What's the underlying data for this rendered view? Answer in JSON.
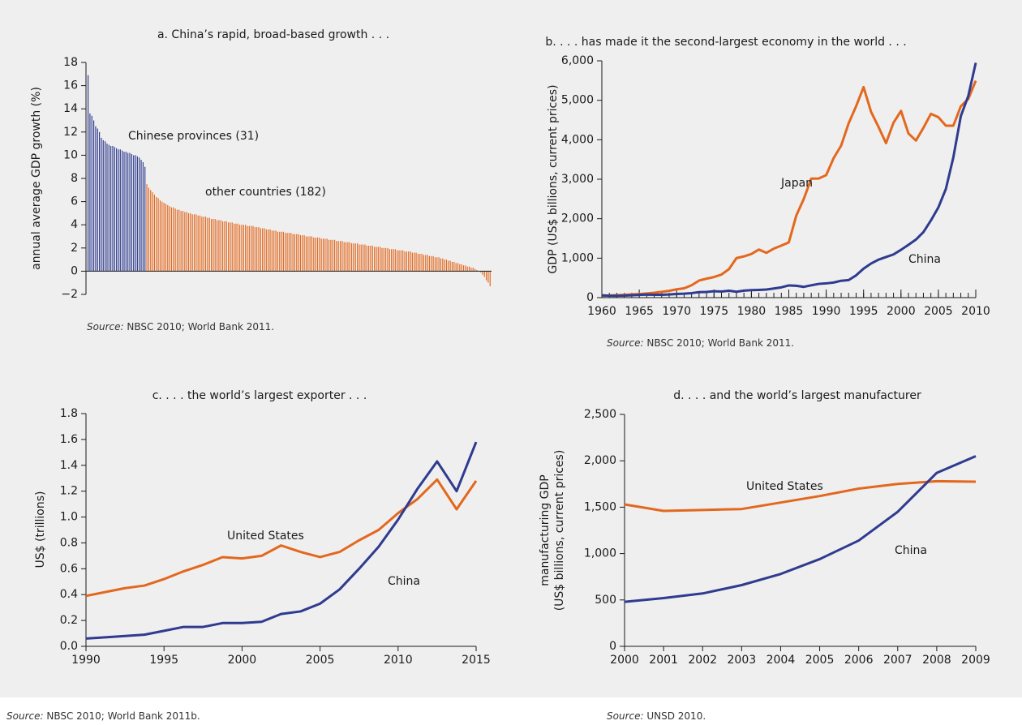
{
  "chart_data": [
    {
      "type": "bar",
      "title": "a. China’s rapid, broad-based growth . . .",
      "ylabel": "annual average GDP growth (%)",
      "ylim": [
        -2,
        18
      ],
      "yticks": [
        {
          "value": -2,
          "label": "−2"
        },
        0,
        2,
        4,
        6,
        8,
        10,
        12,
        14,
        16,
        18
      ],
      "series": [
        {
          "name": "Chinese provinces (31)",
          "color": "#2e3b8f",
          "values": [
            16.9,
            13.6,
            13.4,
            13.0,
            12.5,
            12.3,
            12.0,
            11.5,
            11.3,
            11.2,
            11.0,
            10.9,
            10.8,
            10.8,
            10.7,
            10.6,
            10.5,
            10.5,
            10.4,
            10.3,
            10.3,
            10.2,
            10.2,
            10.1,
            10.0,
            10.0,
            9.9,
            9.8,
            9.6,
            9.4,
            9.0
          ]
        },
        {
          "name": "other countries (182)",
          "color": "#e3681e",
          "values": [
            7.5,
            7.2,
            7.0,
            6.8,
            6.6,
            6.4,
            6.3,
            6.1,
            6.0,
            5.9,
            5.8,
            5.7,
            5.6,
            5.5,
            5.5,
            5.4,
            5.3,
            5.3,
            5.2,
            5.2,
            5.1,
            5.1,
            5.0,
            5.0,
            4.9,
            4.9,
            4.9,
            4.8,
            4.8,
            4.7,
            4.7,
            4.7,
            4.6,
            4.6,
            4.5,
            4.5,
            4.5,
            4.4,
            4.4,
            4.4,
            4.3,
            4.3,
            4.3,
            4.2,
            4.2,
            4.2,
            4.1,
            4.1,
            4.1,
            4.0,
            4.0,
            4.0,
            4.0,
            3.9,
            3.9,
            3.9,
            3.9,
            3.8,
            3.8,
            3.8,
            3.7,
            3.7,
            3.7,
            3.6,
            3.6,
            3.6,
            3.5,
            3.5,
            3.5,
            3.4,
            3.4,
            3.4,
            3.4,
            3.3,
            3.3,
            3.3,
            3.3,
            3.2,
            3.2,
            3.2,
            3.2,
            3.1,
            3.1,
            3.1,
            3.0,
            3.0,
            3.0,
            3.0,
            2.9,
            2.9,
            2.9,
            2.9,
            2.8,
            2.8,
            2.8,
            2.8,
            2.7,
            2.7,
            2.7,
            2.7,
            2.6,
            2.6,
            2.6,
            2.6,
            2.5,
            2.5,
            2.5,
            2.5,
            2.4,
            2.4,
            2.4,
            2.4,
            2.3,
            2.3,
            2.3,
            2.3,
            2.2,
            2.2,
            2.2,
            2.2,
            2.1,
            2.1,
            2.1,
            2.1,
            2.0,
            2.0,
            2.0,
            2.0,
            1.9,
            1.9,
            1.9,
            1.9,
            1.8,
            1.8,
            1.8,
            1.8,
            1.7,
            1.7,
            1.7,
            1.7,
            1.6,
            1.6,
            1.6,
            1.5,
            1.5,
            1.5,
            1.4,
            1.4,
            1.4,
            1.3,
            1.3,
            1.3,
            1.2,
            1.2,
            1.2,
            1.1,
            1.1,
            1.0,
            1.0,
            0.9,
            0.9,
            0.8,
            0.8,
            0.7,
            0.7,
            0.6,
            0.6,
            0.5,
            0.5,
            0.4,
            0.4,
            0.3,
            0.3,
            0.2,
            0.1,
            0.0,
            -0.1,
            -0.3,
            -0.5,
            -0.8,
            -1.0,
            -1.3
          ]
        }
      ],
      "source": {
        "label": "Source:",
        "text": "NBSC 2010; World Bank 2011."
      }
    },
    {
      "type": "line",
      "title": "b. . . . has made it the second-largest economy in the world . . .",
      "ylabel": "GDP (US$ billions, current prices)",
      "x": [
        1960,
        1961,
        1962,
        1963,
        1964,
        1965,
        1966,
        1967,
        1968,
        1969,
        1970,
        1971,
        1972,
        1973,
        1974,
        1975,
        1976,
        1977,
        1978,
        1979,
        1980,
        1981,
        1982,
        1983,
        1984,
        1985,
        1986,
        1987,
        1988,
        1989,
        1990,
        1991,
        1992,
        1993,
        1994,
        1995,
        1996,
        1997,
        1998,
        1999,
        2000,
        2001,
        2002,
        2003,
        2004,
        2005,
        2006,
        2007,
        2008,
        2009,
        2010
      ],
      "xlim": [
        1960,
        2010
      ],
      "xticks": [
        1960,
        1965,
        1970,
        1975,
        1980,
        1985,
        1990,
        1995,
        2000,
        2005,
        2010
      ],
      "xminor": true,
      "ylim": [
        0,
        6000
      ],
      "yticks": [
        0,
        {
          "value": 1000,
          "label": "1,000"
        },
        {
          "value": 2000,
          "label": "2,000"
        },
        {
          "value": 3000,
          "label": "3,000"
        },
        {
          "value": 4000,
          "label": "4,000"
        },
        {
          "value": 5000,
          "label": "5,000"
        },
        {
          "value": 6000,
          "label": "6,000"
        }
      ],
      "series": [
        {
          "name": "Japan",
          "color": "#e3681e",
          "values": [
            44,
            54,
            61,
            70,
            82,
            91,
            106,
            124,
            147,
            172,
            210,
            236,
            313,
            432,
            480,
            522,
            585,
            722,
            1002,
            1045,
            1105,
            1218,
            1135,
            1243,
            1318,
            1399,
            2079,
            2500,
            3016,
            3018,
            3104,
            3537,
            3853,
            4415,
            4851,
            5334,
            4706,
            4324,
            3915,
            4433,
            4731,
            4160,
            3980,
            4303,
            4656,
            4572,
            4357,
            4356,
            4849,
            5035,
            5495
          ]
        },
        {
          "name": "China",
          "color": "#2e3b8f",
          "values": [
            60,
            50,
            47,
            51,
            60,
            70,
            77,
            73,
            71,
            80,
            93,
            100,
            114,
            139,
            144,
            163,
            154,
            175,
            149,
            178,
            191,
            196,
            205,
            231,
            260,
            309,
            301,
            273,
            312,
            348,
            361,
            383,
            427,
            445,
            564,
            734,
            864,
            962,
            1029,
            1094,
            1211,
            1339,
            1471,
            1660,
            1955,
            2286,
            2752,
            3552,
            4598,
            5110,
            5950
          ]
        }
      ],
      "source": {
        "label": "Source:",
        "text": "NBSC 2010; World Bank 2011."
      }
    },
    {
      "type": "line",
      "title": "c. . . . the world’s largest exporter . . .",
      "ylabel": "US$ (trillions)",
      "x": [
        1990,
        1991.25,
        1992.5,
        1993.75,
        1995,
        1996.25,
        1997.5,
        1998.75,
        2000,
        2001.25,
        2002.5,
        2003.75,
        2005,
        2006.25,
        2007.5,
        2008.75,
        2010,
        2011.25,
        2012.5,
        2013.75,
        2015
      ],
      "xlim": [
        1990,
        2015
      ],
      "xticks": [
        1990,
        1995,
        2000,
        2005,
        2010,
        2015
      ],
      "ylim": [
        0,
        1.8
      ],
      "yticks": [
        {
          "value": 0,
          "label": "0.0"
        },
        0.2,
        0.4,
        0.6,
        0.8,
        {
          "value": 1,
          "label": "1.0"
        },
        1.2,
        1.4,
        1.6,
        1.8
      ],
      "series": [
        {
          "name": "United States",
          "color": "#e3681e",
          "values": [
            0.39,
            0.42,
            0.45,
            0.47,
            0.52,
            0.58,
            0.63,
            0.69,
            0.68,
            0.7,
            0.78,
            0.73,
            0.69,
            0.73,
            0.82,
            0.9,
            1.03,
            1.14,
            1.29,
            1.06,
            1.28
          ]
        },
        {
          "name": "China",
          "color": "#2e3b8f",
          "values": [
            0.06,
            0.07,
            0.08,
            0.09,
            0.12,
            0.15,
            0.15,
            0.18,
            0.18,
            0.19,
            0.25,
            0.27,
            0.33,
            0.44,
            0.6,
            0.77,
            0.98,
            1.22,
            1.43,
            1.2,
            1.58
          ]
        }
      ],
      "source": {
        "label": "Source:",
        "text": "NBSC 2010; World Bank 2011b."
      }
    },
    {
      "type": "line",
      "title": "d. . . . and the world’s largest manufacturer",
      "ylabel": [
        "manufacturing GDP",
        "(US$ billions, current prices)"
      ],
      "x": [
        2000,
        2001,
        2002,
        2003,
        2004,
        2005,
        2006,
        2007,
        2008,
        2009
      ],
      "xlim": [
        2000,
        2009
      ],
      "xticks": [
        2000,
        2001,
        2002,
        2003,
        2004,
        2005,
        2006,
        2007,
        2008,
        2009
      ],
      "ylim": [
        0,
        2500
      ],
      "yticks": [
        0,
        500,
        {
          "value": 1000,
          "label": "1,000"
        },
        {
          "value": 1500,
          "label": "1,500"
        },
        {
          "value": 2000,
          "label": "2,000"
        },
        {
          "value": 2500,
          "label": "2,500"
        }
      ],
      "series": [
        {
          "name": "United States",
          "color": "#e3681e",
          "values": [
            1530,
            1460,
            1470,
            1480,
            1550,
            1620,
            1700,
            1750,
            1780,
            1775
          ]
        },
        {
          "name": "China",
          "color": "#2e3b8f",
          "values": [
            480,
            520,
            570,
            660,
            780,
            940,
            1140,
            1450,
            1870,
            2050
          ]
        }
      ],
      "source": {
        "label": "Source:",
        "text": "UNSD 2010."
      }
    }
  ]
}
